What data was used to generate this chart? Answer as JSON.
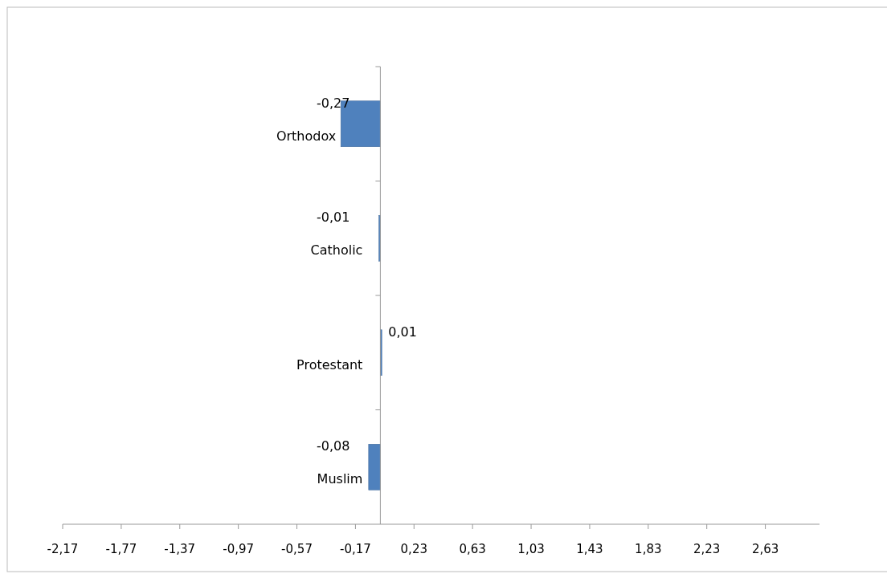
{
  "chart_data": {
    "type": "bar",
    "orientation": "horizontal",
    "categories": [
      "Orthodox",
      "Catholic",
      "Protestant",
      "Muslim"
    ],
    "values": [
      -0.27,
      -0.01,
      0.01,
      -0.08
    ],
    "value_labels": [
      "-0,27",
      "-0,01",
      "0,01",
      "-0,08"
    ],
    "color": "#4f81bd",
    "xlim": [
      -2.17,
      3.0
    ],
    "xticks": [
      {
        "value": -2.17,
        "label": "-2,17"
      },
      {
        "value": -1.77,
        "label": "-1,77"
      },
      {
        "value": -1.37,
        "label": "-1,37"
      },
      {
        "value": -0.97,
        "label": "-0,97"
      },
      {
        "value": -0.57,
        "label": "-0,57"
      },
      {
        "value": -0.17,
        "label": "-0,17"
      },
      {
        "value": 0.23,
        "label": "0,23"
      },
      {
        "value": 0.63,
        "label": "0,63"
      },
      {
        "value": 1.03,
        "label": "1,03"
      },
      {
        "value": 1.43,
        "label": "1,43"
      },
      {
        "value": 1.83,
        "label": "1,83"
      },
      {
        "value": 2.23,
        "label": "2,23"
      },
      {
        "value": 2.63,
        "label": "2,63"
      }
    ]
  }
}
